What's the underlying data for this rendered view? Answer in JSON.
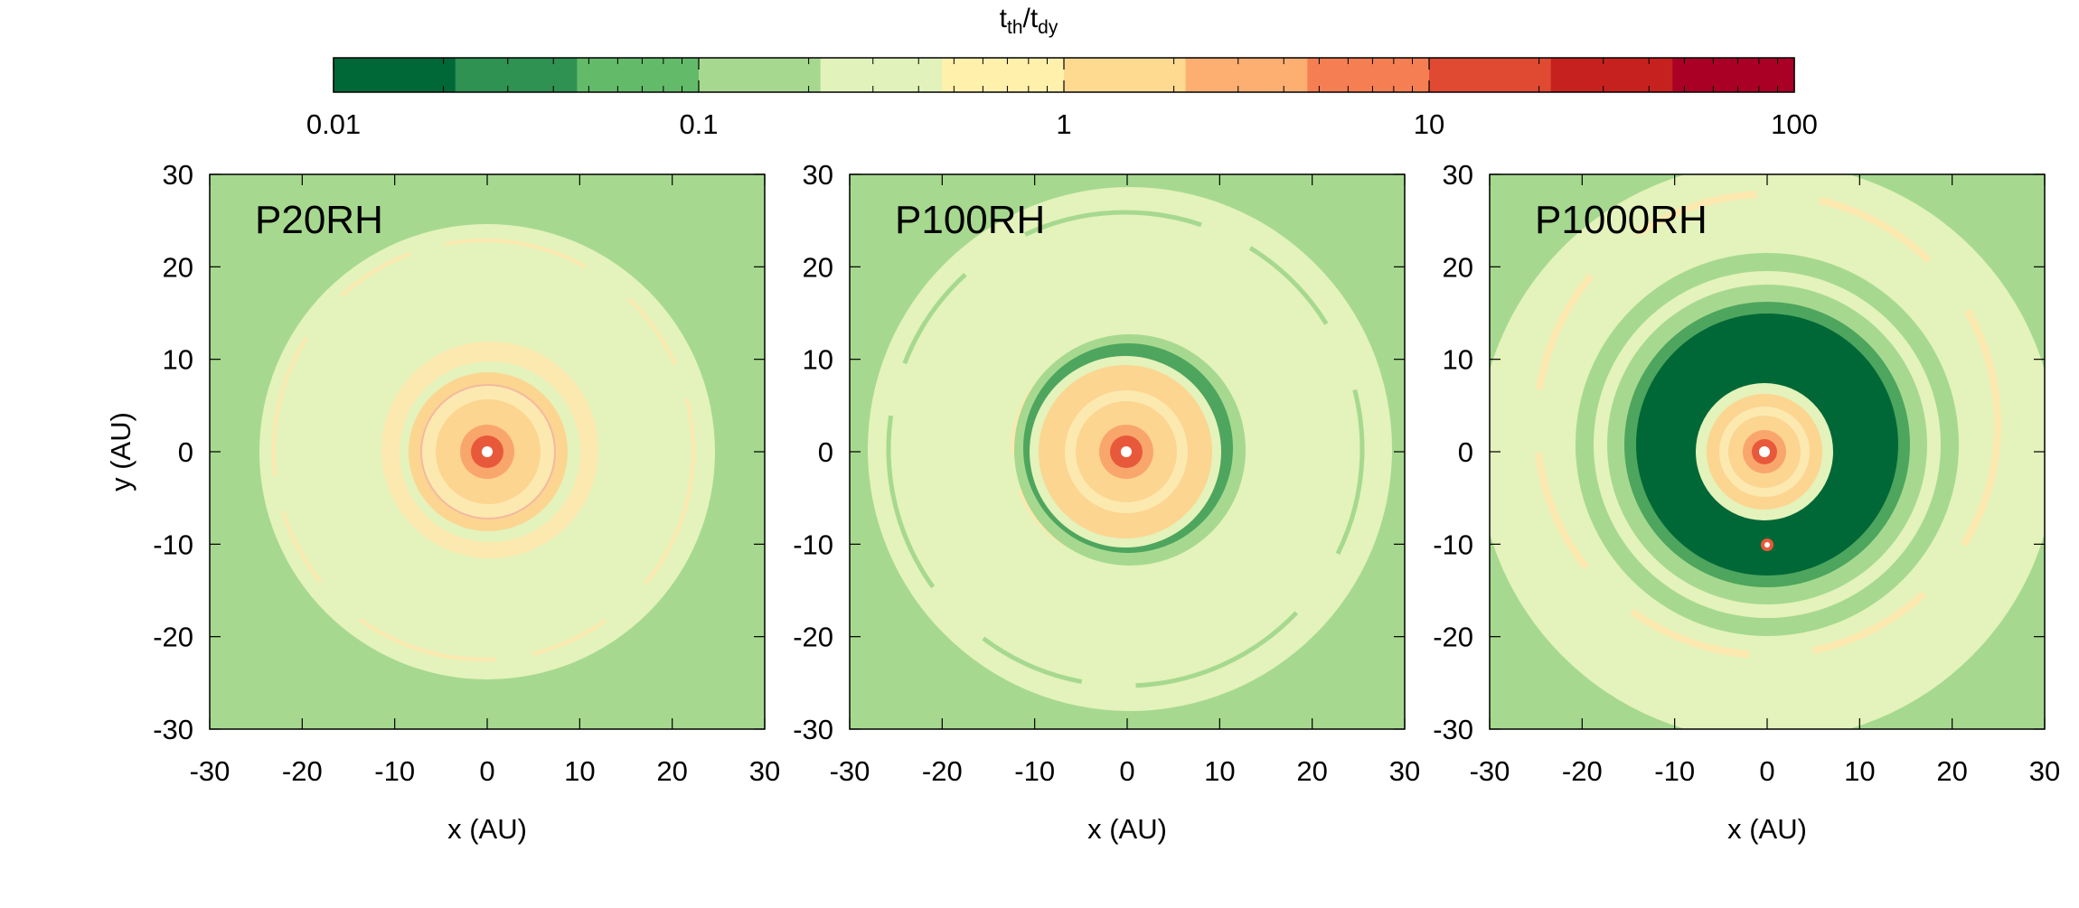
{
  "chart_data": {
    "type": "heatmap",
    "colorbar": {
      "label_main": "t",
      "label_sub1": "th",
      "label_slash": "/t",
      "label_sub2": "dy",
      "scale": "log",
      "range": [
        0.01,
        100
      ],
      "tick_labels": [
        "0.01",
        "0.1",
        "1",
        "10",
        "100"
      ],
      "tick_values": [
        0.01,
        0.1,
        1,
        10,
        100
      ],
      "levels": 12,
      "colors": [
        "#006837",
        "#2f9152",
        "#63bb6a",
        "#a6d98f",
        "#e2f2bb",
        "#fff0ab",
        "#fed990",
        "#fdae71",
        "#f57f53",
        "#e04a33",
        "#c7211f",
        "#ab0026"
      ]
    },
    "axis_range": [
      -30,
      30
    ],
    "tick_values": [
      -30,
      -20,
      -10,
      0,
      10,
      20,
      30
    ],
    "tick_labels": [
      "-30",
      "-20",
      "-10",
      "0",
      "10",
      "20",
      "30"
    ],
    "xlabel": "x (AU)",
    "ylabel": "y (AU)",
    "panels": [
      {
        "id": "p20",
        "title": "P20RH"
      },
      {
        "id": "p100",
        "title": "P100RH"
      },
      {
        "id": "p1000",
        "title": "P1000RH"
      }
    ]
  },
  "colors": {
    "dark_green": "#006837",
    "mid_green": "#4ea55e",
    "light_green": "#a6d98f",
    "pale": "#e4f2bb",
    "cream": "#fce9b0",
    "peach": "#fcd591",
    "orange": "#f9a66c",
    "red": "#e8593b"
  }
}
